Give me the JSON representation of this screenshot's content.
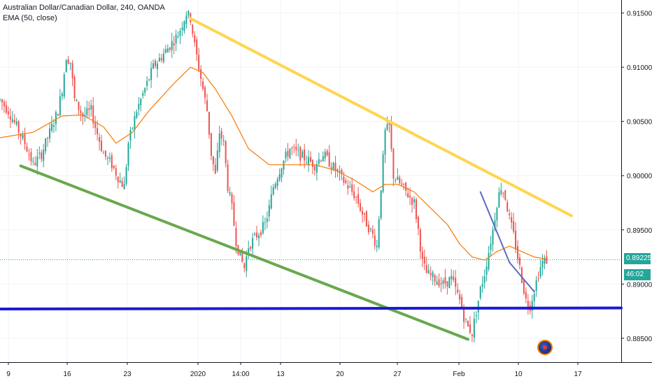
{
  "legend": {
    "title": "Australian Dollar/Canadian Dollar, 240, OANDA",
    "indicator": "EMA (50, close)"
  },
  "tags": {
    "last_price": "0.89225",
    "countdown": "46:02"
  },
  "colors": {
    "up": "#26a69a",
    "down": "#ef5350",
    "ema": "#f57c00",
    "resistance": "#ffd54f",
    "support": "#6aa84f",
    "horizontal": "#1a1ad6",
    "pattern": "#5c6bc0",
    "grid": "#f0f3fa",
    "axis_text": "#131722",
    "last_price_bg": "#26a69a"
  },
  "chart_data": {
    "type": "candlestick",
    "title": "",
    "xlabel": "",
    "ylabel": "",
    "ylim": [
      0.8828,
      0.9162
    ],
    "y_ticks": [
      "0.91500",
      "0.91000",
      "0.90500",
      "0.90000",
      "0.89500",
      "0.89000",
      "0.88500"
    ],
    "x_tick_labels": [
      "9",
      "16",
      "23",
      "2020",
      "14:00",
      "13",
      "20",
      "27",
      "Feb",
      "10",
      "17"
    ],
    "last_price": 0.89225,
    "series": [
      {
        "name": "AUDCAD",
        "kind": "close_path",
        "points": [
          [
            0,
            0.907
          ],
          [
            4,
            0.906
          ],
          [
            8,
            0.9045
          ],
          [
            12,
            0.903
          ],
          [
            16,
            0.901
          ],
          [
            20,
            0.902
          ],
          [
            24,
            0.904
          ],
          [
            28,
            0.906
          ],
          [
            30,
            0.908
          ],
          [
            32,
            0.911
          ],
          [
            34,
            0.9105
          ],
          [
            36,
            0.907
          ],
          [
            40,
            0.9055
          ],
          [
            44,
            0.906
          ],
          [
            46,
            0.9045
          ],
          [
            50,
            0.902
          ],
          [
            54,
            0.901
          ],
          [
            58,
            0.8995
          ],
          [
            60,
            0.899
          ],
          [
            62,
            0.903
          ],
          [
            66,
            0.906
          ],
          [
            70,
            0.908
          ],
          [
            74,
            0.91
          ],
          [
            78,
            0.911
          ],
          [
            82,
            0.912
          ],
          [
            86,
            0.913
          ],
          [
            88,
            0.914
          ],
          [
            90,
            0.915
          ],
          [
            92,
            0.9145
          ],
          [
            94,
            0.912
          ],
          [
            96,
            0.91
          ],
          [
            98,
            0.908
          ],
          [
            100,
            0.906
          ],
          [
            102,
            0.902
          ],
          [
            104,
            0.9
          ],
          [
            106,
            0.904
          ],
          [
            108,
            0.903
          ],
          [
            110,
            0.899
          ],
          [
            112,
            0.897
          ],
          [
            114,
            0.894
          ],
          [
            116,
            0.8925
          ],
          [
            118,
            0.8915
          ],
          [
            120,
            0.8935
          ],
          [
            124,
            0.8945
          ],
          [
            128,
            0.8955
          ],
          [
            130,
            0.897
          ],
          [
            132,
            0.899
          ],
          [
            136,
            0.901
          ],
          [
            140,
            0.9025
          ],
          [
            144,
            0.902
          ],
          [
            148,
            0.9015
          ],
          [
            152,
            0.901
          ],
          [
            156,
            0.902
          ],
          [
            160,
            0.901
          ],
          [
            164,
            0.9
          ],
          [
            168,
            0.899
          ],
          [
            172,
            0.898
          ],
          [
            176,
            0.896
          ],
          [
            180,
            0.8945
          ],
          [
            182,
            0.8935
          ],
          [
            184,
            0.899
          ],
          [
            186,
            0.904
          ],
          [
            188,
            0.9045
          ],
          [
            190,
            0.9
          ],
          [
            192,
            0.8995
          ],
          [
            196,
            0.8985
          ],
          [
            200,
            0.8975
          ],
          [
            202,
            0.895
          ],
          [
            204,
            0.892
          ],
          [
            206,
            0.891
          ],
          [
            210,
            0.8905
          ],
          [
            214,
            0.89
          ],
          [
            218,
            0.8905
          ],
          [
            220,
            0.8895
          ],
          [
            222,
            0.8885
          ],
          [
            224,
            0.887
          ],
          [
            226,
            0.886
          ],
          [
            228,
            0.8855
          ],
          [
            230,
            0.8875
          ],
          [
            232,
            0.8895
          ],
          [
            234,
            0.891
          ],
          [
            236,
            0.893
          ],
          [
            238,
            0.895
          ],
          [
            240,
            0.8975
          ],
          [
            242,
            0.899
          ],
          [
            244,
            0.898
          ],
          [
            246,
            0.896
          ],
          [
            248,
            0.8945
          ],
          [
            250,
            0.8925
          ],
          [
            252,
            0.8905
          ],
          [
            254,
            0.8885
          ],
          [
            256,
            0.888
          ],
          [
            258,
            0.8895
          ],
          [
            260,
            0.891
          ],
          [
            262,
            0.892
          ],
          [
            264,
            0.8922
          ]
        ]
      },
      {
        "name": "EMA (50, close)",
        "kind": "line",
        "points": [
          [
            0,
            0.9035
          ],
          [
            16,
            0.904
          ],
          [
            30,
            0.9055
          ],
          [
            40,
            0.9056
          ],
          [
            50,
            0.9045
          ],
          [
            56,
            0.903
          ],
          [
            64,
            0.904
          ],
          [
            72,
            0.906
          ],
          [
            84,
            0.9085
          ],
          [
            92,
            0.91
          ],
          [
            98,
            0.9095
          ],
          [
            104,
            0.908
          ],
          [
            112,
            0.9055
          ],
          [
            120,
            0.9025
          ],
          [
            130,
            0.901
          ],
          [
            140,
            0.901
          ],
          [
            152,
            0.901
          ],
          [
            162,
            0.9005
          ],
          [
            172,
            0.8995
          ],
          [
            180,
            0.8985
          ],
          [
            186,
            0.8992
          ],
          [
            192,
            0.8992
          ],
          [
            200,
            0.8985
          ],
          [
            208,
            0.897
          ],
          [
            216,
            0.8955
          ],
          [
            222,
            0.8937
          ],
          [
            228,
            0.8925
          ],
          [
            234,
            0.8922
          ],
          [
            240,
            0.893
          ],
          [
            246,
            0.8935
          ],
          [
            252,
            0.893
          ],
          [
            258,
            0.8925
          ],
          [
            264,
            0.8923
          ]
        ]
      },
      {
        "name": "resistance",
        "kind": "trendline",
        "points": [
          [
            92,
            0.9145
          ],
          [
            276,
            0.8963
          ]
        ]
      },
      {
        "name": "support",
        "kind": "trendline",
        "points": [
          [
            10,
            0.9009
          ],
          [
            226,
            0.8849
          ]
        ]
      },
      {
        "name": "horizontal",
        "kind": "trendline",
        "points": [
          [
            0,
            0.8877
          ],
          [
            300,
            0.8878
          ]
        ]
      },
      {
        "name": "pattern",
        "kind": "trendline",
        "points": [
          [
            232,
            0.8985
          ],
          [
            246,
            0.892
          ],
          [
            258,
            0.8893
          ]
        ]
      }
    ],
    "x_axis_units": "bar index (4h)",
    "grid": true,
    "legend_position": "top-left"
  }
}
